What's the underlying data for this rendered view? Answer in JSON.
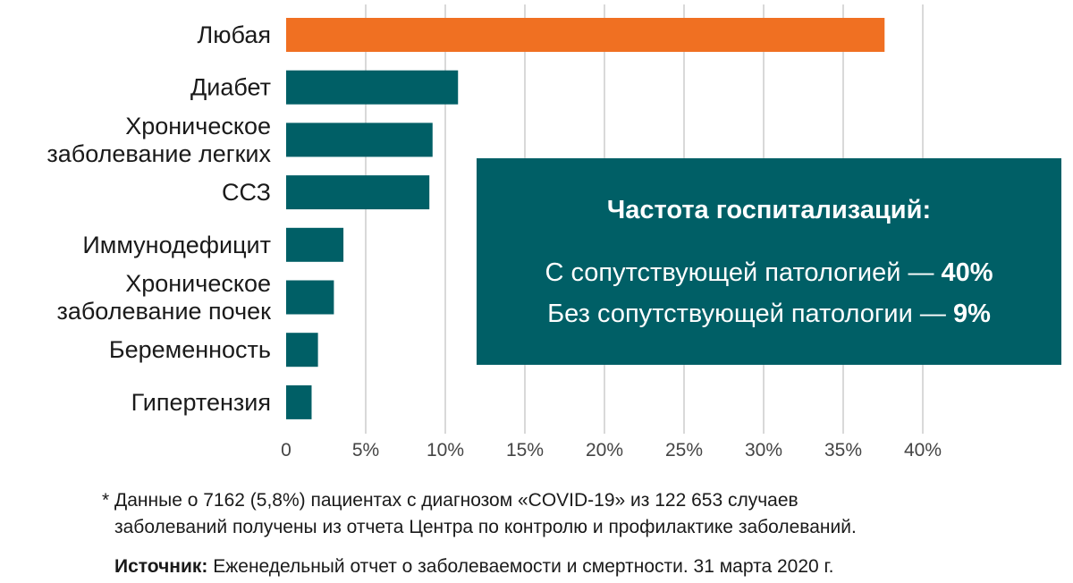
{
  "chart_data": {
    "type": "bar",
    "orientation": "horizontal",
    "categories": [
      [
        "Любая"
      ],
      [
        "Диабет"
      ],
      [
        "Хроническое",
        "заболевание легких"
      ],
      [
        "ССЗ"
      ],
      [
        "Иммунодефицит"
      ],
      [
        "Хроническое",
        "заболевание почек"
      ],
      [
        "Беременность"
      ],
      [
        "Гипертензия"
      ]
    ],
    "values": [
      37.6,
      10.8,
      9.2,
      9.0,
      3.6,
      3.0,
      2.0,
      1.6
    ],
    "xlim": [
      0,
      40
    ],
    "xticks": [
      0,
      5,
      10,
      15,
      20,
      25,
      30,
      35,
      40
    ],
    "xtick_labels": [
      "0",
      "5%",
      "10%",
      "15%",
      "20%",
      "25%",
      "30%",
      "35%",
      "40%"
    ],
    "grid": "vertical",
    "colors": {
      "highlight": "#f07022",
      "bar": "#005f66",
      "grid": "#d9d9d9"
    }
  },
  "callout": {
    "title": "Частота госпитализаций:",
    "line1_text": "С сопутствующей патологией — ",
    "line1_value": "40%",
    "line2_text": "Без сопутствующей патологии — ",
    "line2_value": "9%"
  },
  "footnote": {
    "line1": "* Данные о 7162 (5,8%) пациентах с диагнозом «COVID-19» из 122 653 случаев",
    "line2": "заболеваний получены из отчета Центра по контролю и профилактике заболеваний."
  },
  "source": {
    "label": "Источник:",
    "text": " Еженедельный отчет о заболеваемости и смертности. 31 марта 2020 г."
  }
}
